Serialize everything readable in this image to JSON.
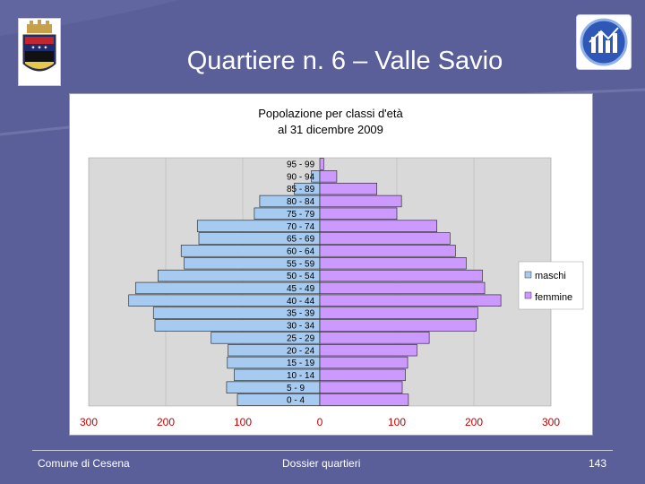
{
  "slide": {
    "title": "Quartiere n. 6 – Valle Savio"
  },
  "footer": {
    "left": "Comune di Cesena",
    "center": "Dossier quartieri",
    "page_number": "143"
  },
  "logos": {
    "left_icon": "city-coat-of-arms-icon",
    "right_icon": "bar-chart-app-icon"
  },
  "colors": {
    "background": "#5b5f99",
    "maschi": "#a6caf0",
    "femmine": "#cc99ff",
    "axis_tick_labels": "#c00000"
  },
  "chart_data": {
    "type": "bar",
    "orientation": "horizontal",
    "subtype": "population-pyramid",
    "title": "Popolazione per classi d'età",
    "subtitle": "al 31 dicembre 2009",
    "categories": [
      "0 - 4",
      "5 - 9",
      "10 - 14",
      "15 - 19",
      "20 - 24",
      "25 - 29",
      "30 - 34",
      "35 - 39",
      "40 - 44",
      "45 - 49",
      "50 - 54",
      "55 - 59",
      "60 - 64",
      "65 - 69",
      "70 - 74",
      "75 - 79",
      "80 - 84",
      "85 - 89",
      "90 - 94",
      "95 - 99"
    ],
    "series": [
      {
        "name": "maschi",
        "color": "#a6caf0",
        "side": "left",
        "values": [
          107,
          121,
          111,
          120,
          119,
          141,
          214,
          216,
          248,
          239,
          210,
          176,
          180,
          157,
          159,
          85,
          78,
          33,
          11,
          0
        ]
      },
      {
        "name": "femmine",
        "color": "#cc99ff",
        "side": "right",
        "values": [
          115,
          107,
          111,
          114,
          126,
          142,
          203,
          205,
          235,
          214,
          211,
          190,
          176,
          169,
          152,
          100,
          106,
          74,
          22,
          5
        ]
      }
    ],
    "xlim": [
      -300,
      300
    ],
    "x_tick_labels": [
      "300",
      "200",
      "100",
      "0",
      "100",
      "200",
      "300"
    ],
    "grid": true,
    "legend_position": "right"
  }
}
